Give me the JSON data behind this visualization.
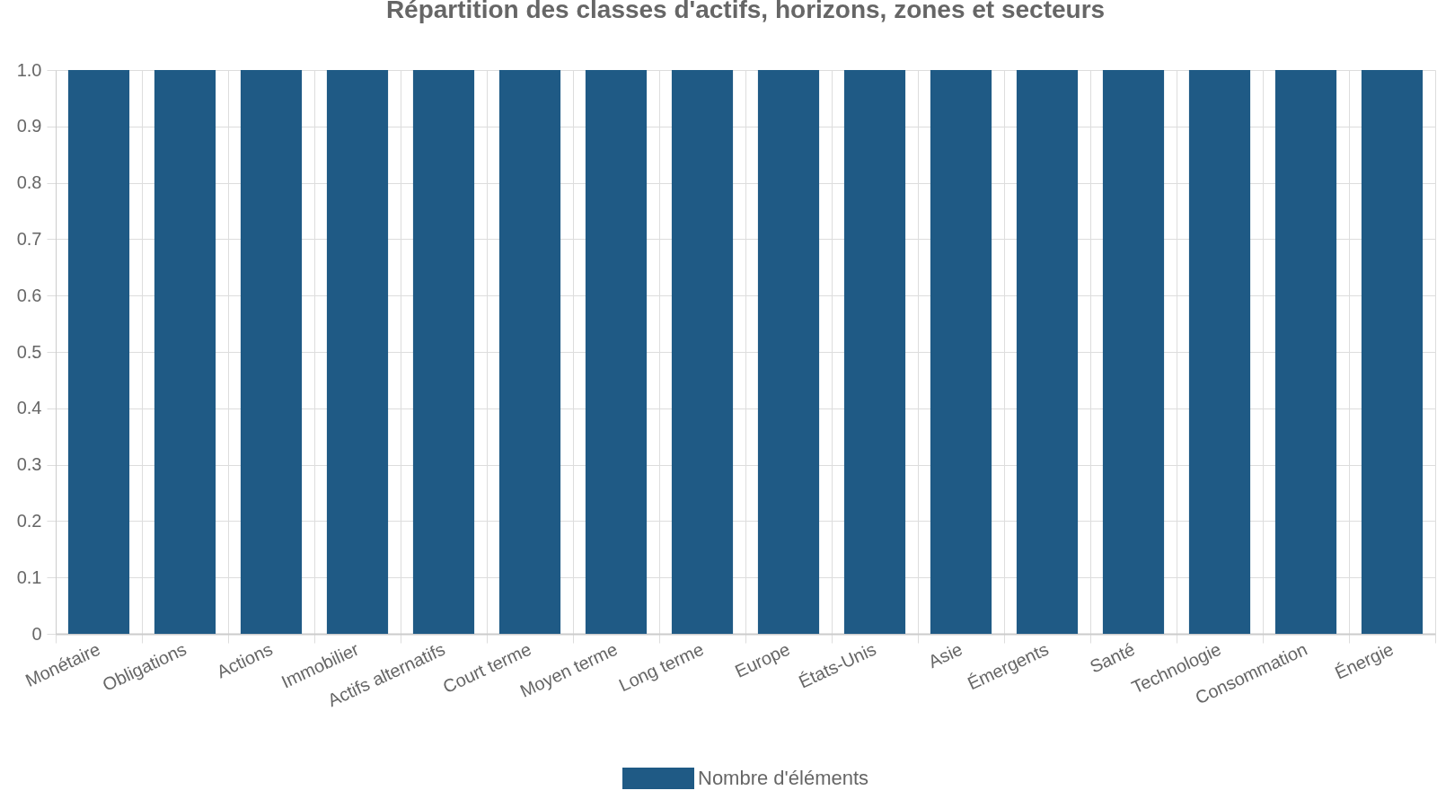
{
  "chart_data": {
    "type": "bar",
    "title": "Répartition des classes d'actifs, horizons, zones et secteurs",
    "categories": [
      "Monétaire",
      "Obligations",
      "Actions",
      "Immobilier",
      "Actifs alternatifs",
      "Court terme",
      "Moyen terme",
      "Long terme",
      "Europe",
      "États-Unis",
      "Asie",
      "Émergents",
      "Santé",
      "Technologie",
      "Consommation",
      "Énergie"
    ],
    "series": [
      {
        "name": "Nombre d'éléments",
        "color": "#1f5a85",
        "values": [
          1,
          1,
          1,
          1,
          1,
          1,
          1,
          1,
          1,
          1,
          1,
          1,
          1,
          1,
          1,
          1
        ]
      }
    ],
    "ylim": [
      0,
      1
    ],
    "yticks": [
      0,
      0.1,
      0.2,
      0.3,
      0.4,
      0.5,
      0.6,
      0.7,
      0.8,
      0.9,
      {
        "value": 1,
        "label": "1.0"
      }
    ],
    "grid": true,
    "legend": "bottom"
  }
}
